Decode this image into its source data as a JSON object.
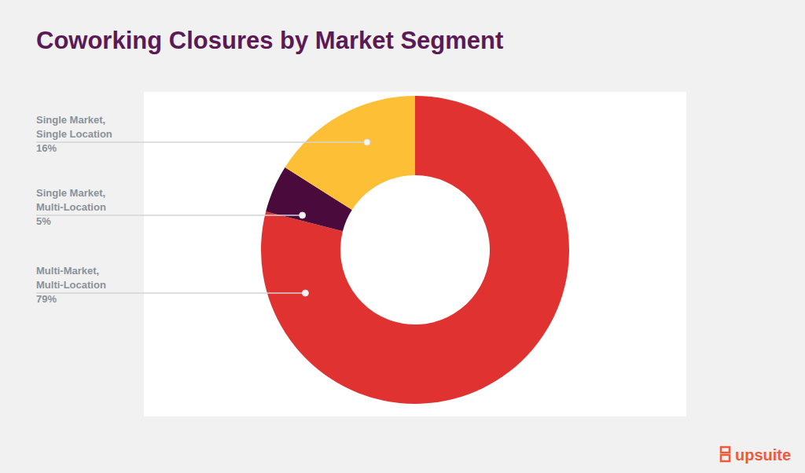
{
  "chart_data": {
    "type": "donut",
    "title": "Coworking Closures by Market Segment",
    "categories": [
      "Multi-Market, Multi-Location",
      "Single Market, Multi-Location",
      "Single Market, Single Location"
    ],
    "values": [
      79,
      5,
      16
    ],
    "value_labels": [
      "79%",
      "5%",
      "16%"
    ],
    "colors": [
      "#e03331",
      "#4b0a3c",
      "#fdbf35"
    ],
    "data_labels": true,
    "annotations": [
      "upsuite"
    ]
  }
}
